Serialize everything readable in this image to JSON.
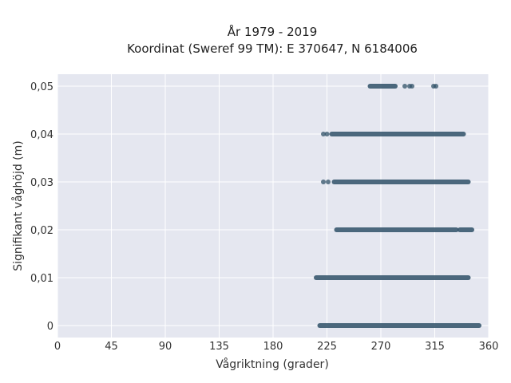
{
  "chart_data": {
    "type": "scatter",
    "title": "År 1979 - 2019",
    "subtitle": "Koordinat (Sweref 99 TM): E 370647, N 6184006",
    "xlabel": "Vågriktning (grader)",
    "ylabel": "Signifikant våghöjd (m)",
    "xlim": [
      0,
      360
    ],
    "ylim": [
      -0.0025,
      0.0525
    ],
    "x_ticks": [
      0,
      45,
      90,
      135,
      180,
      225,
      270,
      315,
      360
    ],
    "x_tick_labels": [
      "0",
      "45",
      "90",
      "135",
      "180",
      "225",
      "270",
      "315",
      "360"
    ],
    "y_ticks": [
      0,
      0.01,
      0.02,
      0.03,
      0.04,
      0.05
    ],
    "y_tick_labels": [
      "0",
      "0,01",
      "0,02",
      "0,03",
      "0,04",
      "0,05"
    ],
    "grid": true,
    "background_color": "#e5e7f0",
    "point_color": "#2f5067",
    "series": [
      {
        "points": [
          {
            "y": 0.05,
            "x_start": 261,
            "x_end": 282
          },
          {
            "y": 0.05,
            "x": 290
          },
          {
            "y": 0.05,
            "x": 294
          },
          {
            "y": 0.05,
            "x": 296
          },
          {
            "y": 0.05,
            "x": 314
          },
          {
            "y": 0.05,
            "x": 316
          },
          {
            "y": 0.04,
            "x": 222
          },
          {
            "y": 0.04,
            "x": 225
          },
          {
            "y": 0.04,
            "x_start": 229,
            "x_end": 339
          },
          {
            "y": 0.03,
            "x": 222
          },
          {
            "y": 0.03,
            "x": 226
          },
          {
            "y": 0.03,
            "x_start": 231,
            "x_end": 343
          },
          {
            "y": 0.02,
            "x_start": 233,
            "x_end": 333
          },
          {
            "y": 0.02,
            "x_start": 336,
            "x_end": 346
          },
          {
            "y": 0.01,
            "x_start": 216,
            "x_end": 343
          },
          {
            "y": 0.0,
            "x_start": 219,
            "x_end": 352
          }
        ]
      }
    ]
  }
}
